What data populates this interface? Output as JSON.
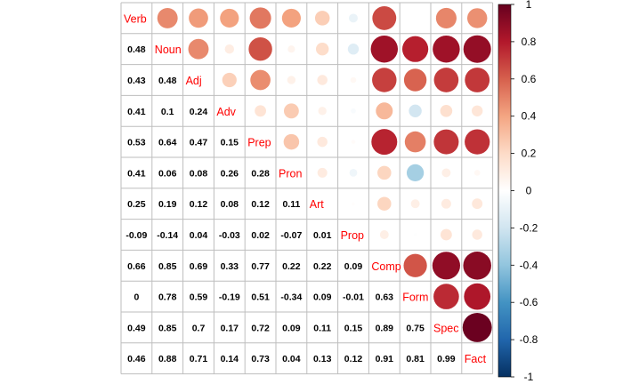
{
  "chart_data": {
    "type": "heatmap",
    "subtype": "correlation-matrix (mixed: lower numbers, upper circles)",
    "variables": [
      "Verb",
      "Noun",
      "Adj",
      "Adv",
      "Prep",
      "Pron",
      "Art",
      "Prop",
      "Comp",
      "Form",
      "Spec",
      "Fact"
    ],
    "correlations": [
      [
        1,
        0.48,
        0.43,
        0.41,
        0.53,
        0.41,
        0.25,
        -0.09,
        0.66,
        0,
        0.49,
        0.46
      ],
      [
        0.48,
        1,
        0.48,
        0.1,
        0.64,
        0.06,
        0.19,
        -0.14,
        0.85,
        0.78,
        0.85,
        0.88
      ],
      [
        0.43,
        0.48,
        1,
        0.24,
        0.47,
        0.08,
        0.12,
        0.04,
        0.69,
        0.59,
        0.7,
        0.71
      ],
      [
        0.41,
        0.1,
        0.24,
        1,
        0.15,
        0.26,
        0.08,
        -0.03,
        0.33,
        -0.19,
        0.17,
        0.14
      ],
      [
        0.53,
        0.64,
        0.47,
        0.15,
        1,
        0.28,
        0.12,
        0.02,
        0.77,
        0.51,
        0.72,
        0.73
      ],
      [
        0.41,
        0.06,
        0.08,
        0.26,
        0.28,
        1,
        0.11,
        -0.07,
        0.22,
        -0.34,
        0.09,
        0.04
      ],
      [
        0.25,
        0.19,
        0.12,
        0.08,
        0.12,
        0.11,
        1,
        0.01,
        0.22,
        0.09,
        0.11,
        0.13
      ],
      [
        -0.09,
        -0.14,
        0.04,
        -0.03,
        0.02,
        -0.07,
        0.01,
        1,
        0.09,
        -0.01,
        0.15,
        0.12
      ],
      [
        0.66,
        0.85,
        0.69,
        0.33,
        0.77,
        0.22,
        0.22,
        0.09,
        1,
        0.63,
        0.89,
        0.91
      ],
      [
        0,
        0.78,
        0.59,
        -0.19,
        0.51,
        -0.34,
        0.09,
        -0.01,
        0.63,
        1,
        0.75,
        0.81
      ],
      [
        0.49,
        0.85,
        0.7,
        0.17,
        0.72,
        0.09,
        0.11,
        0.15,
        0.89,
        0.75,
        1,
        0.99
      ],
      [
        0.46,
        0.88,
        0.71,
        0.14,
        0.73,
        0.04,
        0.13,
        0.12,
        0.91,
        0.81,
        0.99,
        1
      ]
    ],
    "lower_triangle": "numbers",
    "upper_triangle": "circles",
    "diagonal": "variable names",
    "color_scale": {
      "range": [
        -1,
        1
      ],
      "ticks": [
        "1",
        "0.8",
        "0.6",
        "0.4",
        "0.2",
        "0",
        "-0.2",
        "-0.4",
        "-0.6",
        "-0.8",
        "-1"
      ],
      "stops": [
        "#053061",
        "#2166AC",
        "#4393C3",
        "#92C5DE",
        "#D1E5F0",
        "#FFFFFF",
        "#FDDBC7",
        "#F4A582",
        "#D6604D",
        "#B2182B",
        "#67001F"
      ]
    },
    "label_color": "#FF0000",
    "grid_color": "#BEBEBE"
  }
}
